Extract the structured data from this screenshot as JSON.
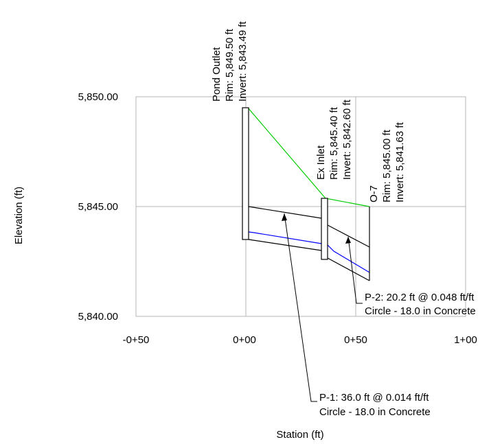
{
  "axes": {
    "x_label": "Station (ft)",
    "y_label": "Elevation (ft)",
    "x_ticks": [
      "-0+50",
      "0+00",
      "0+50",
      "1+00"
    ],
    "y_ticks": [
      "5,850.00",
      "5,845.00",
      "5,840.00"
    ],
    "x_range_ft": [
      -50,
      100
    ],
    "y_range_ft": [
      5840,
      5850
    ],
    "grid": true
  },
  "colors": {
    "hgl": "#0000ff",
    "egl": "#00cc00",
    "structure": "#000000",
    "grid": "#b4b4b4"
  },
  "structures": [
    {
      "id": "pond-outlet",
      "station_ft": 0,
      "lines": [
        "Pond Outlet",
        "Rim: 5,849.50 ft",
        "Invert: 5,843.49 ft"
      ],
      "rim": 5849.5,
      "invert": 5843.49
    },
    {
      "id": "ex-inlet",
      "station_ft": 36.0,
      "lines": [
        "Ex Inlet",
        "Rim: 5,845.40 ft",
        "Invert: 5,842.60 ft"
      ],
      "rim": 5845.4,
      "invert": 5842.6
    },
    {
      "id": "o-7",
      "station_ft": 56.2,
      "lines": [
        "O-7",
        "Rim: 5,845.00 ft",
        "Invert: 5,841.63 ft"
      ],
      "rim": 5845.0,
      "invert": 5841.63
    }
  ],
  "pipes": [
    {
      "id": "p-1",
      "label_lines": [
        "P-1: 36.0 ft @ 0.014 ft/ft",
        "Circle - 18.0 in Concrete"
      ]
    },
    {
      "id": "p-2",
      "label_lines": [
        "P-2: 20.2 ft @ 0.048 ft/ft",
        "Circle - 18.0 in Concrete"
      ]
    }
  ]
}
